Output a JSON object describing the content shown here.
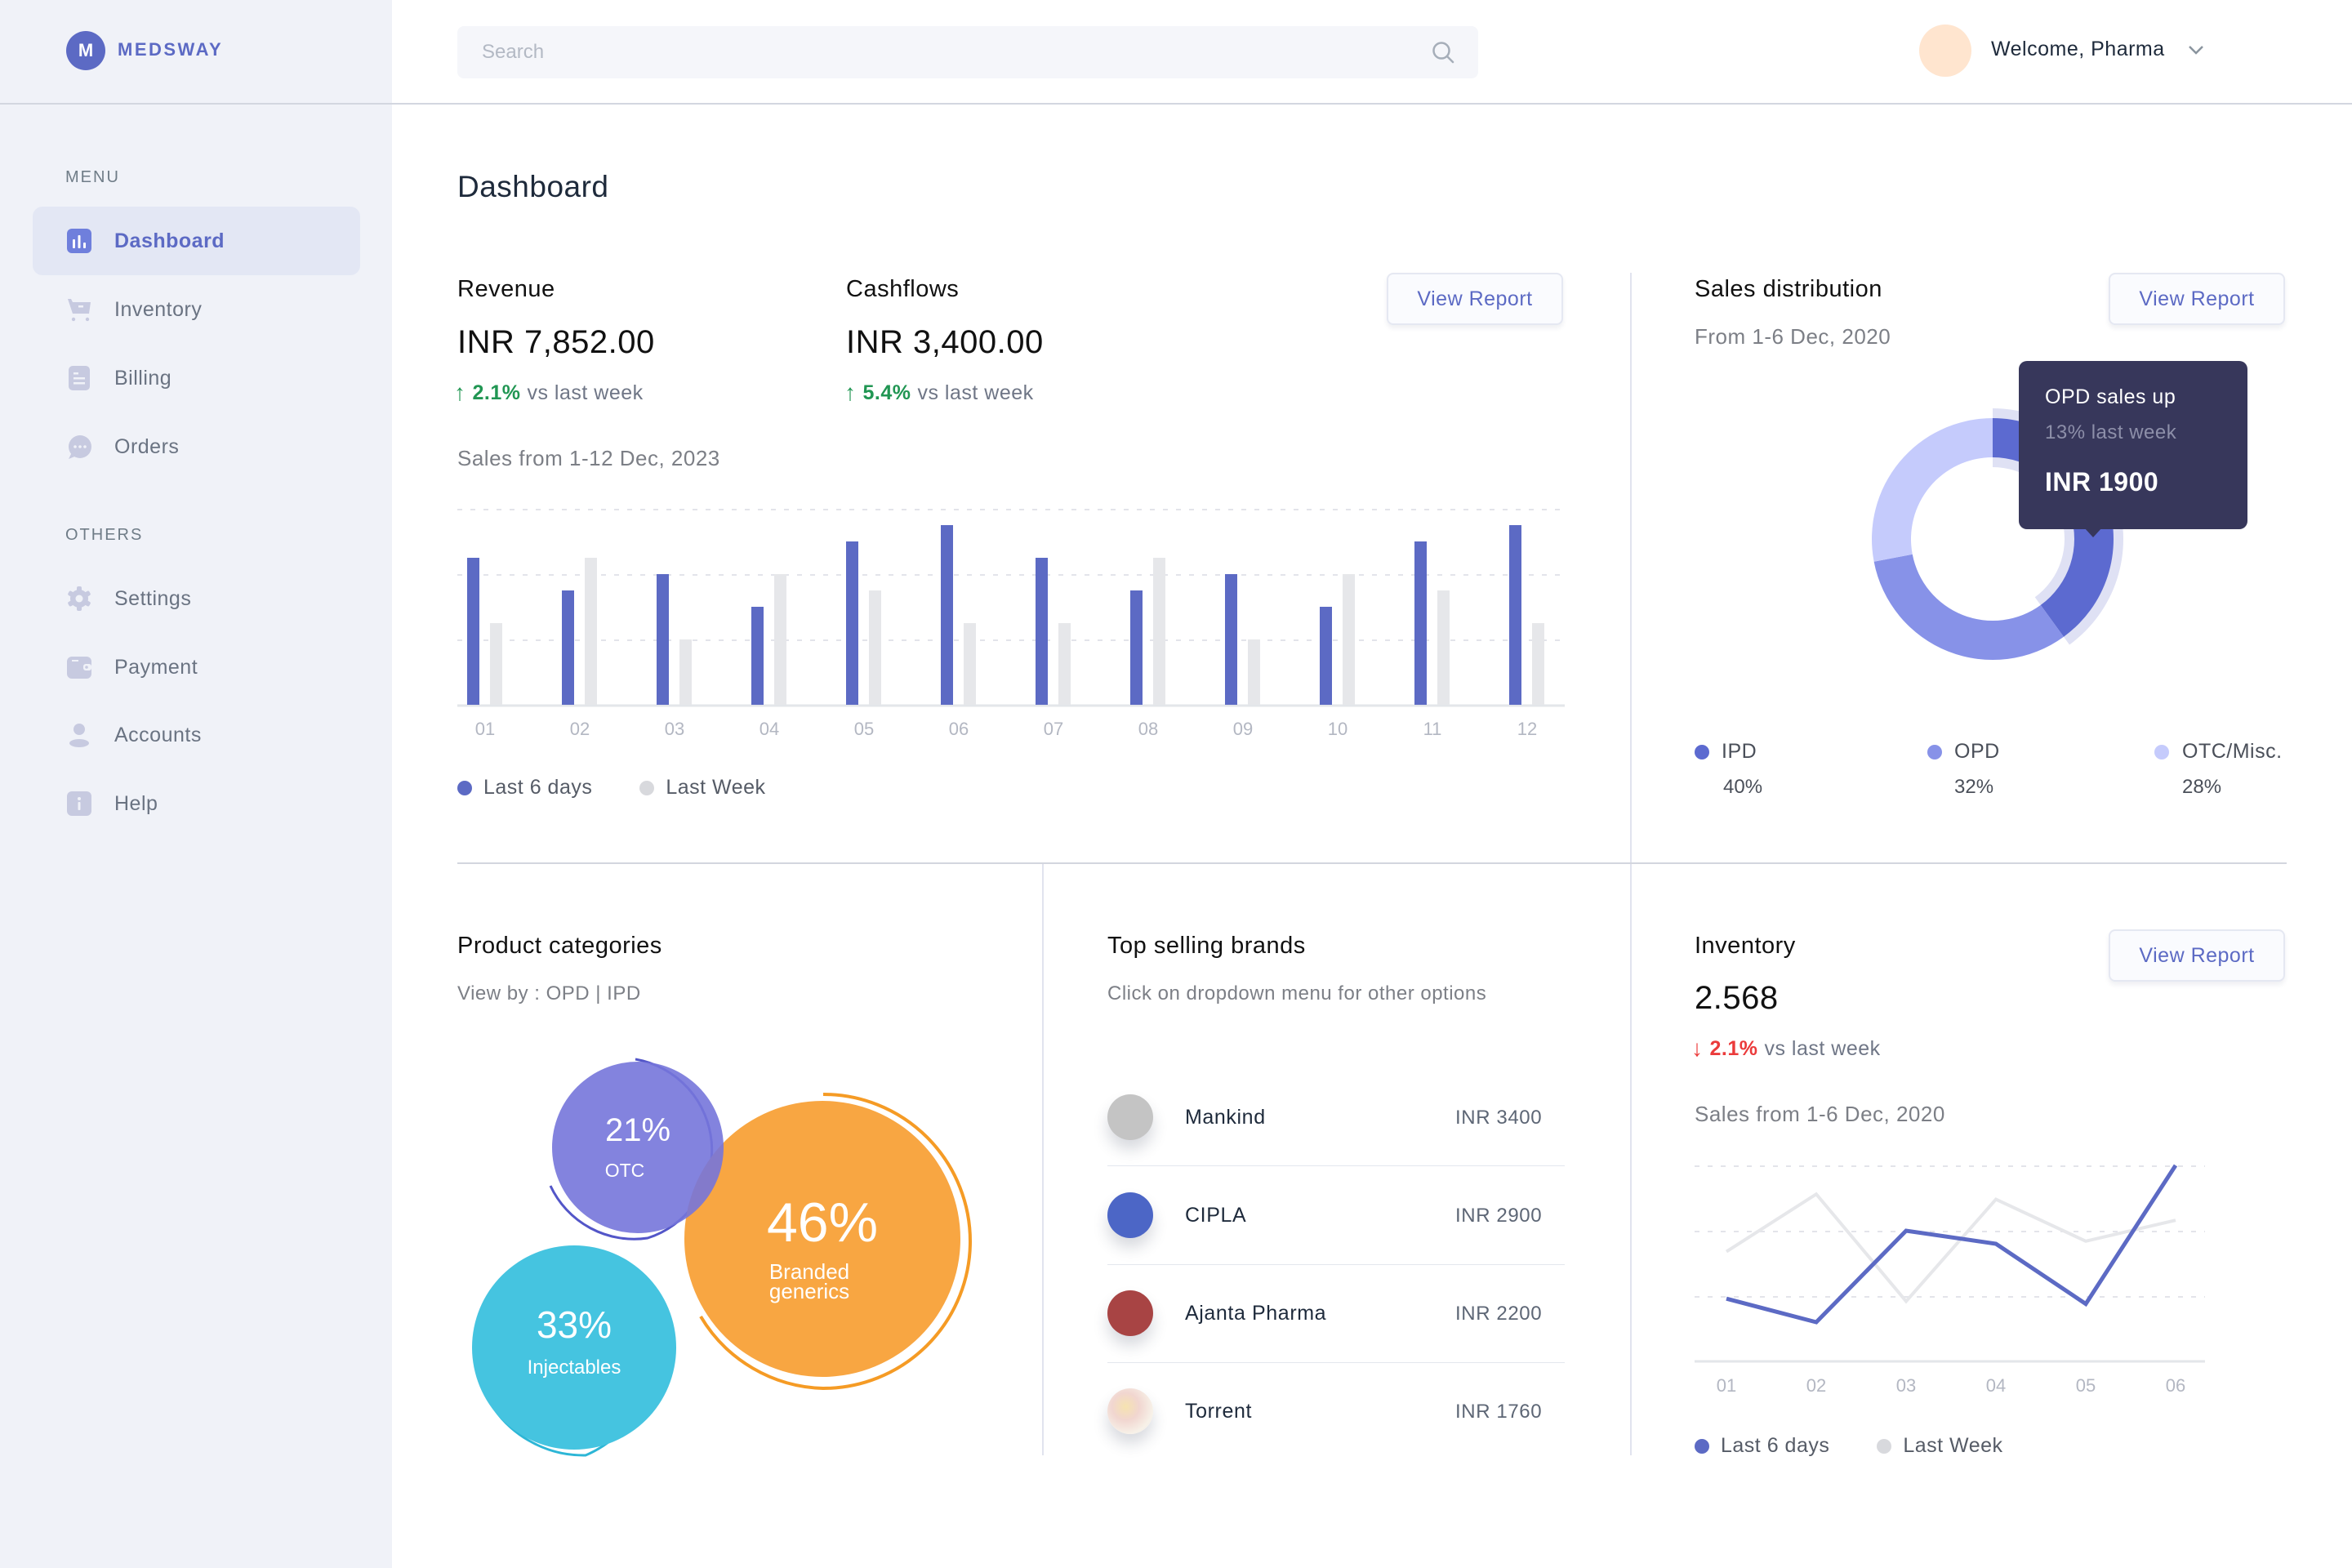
{
  "brand": {
    "logo_letter": "M",
    "name": "MEDSWAY",
    "accent": "#5C6AC4"
  },
  "sidebar": {
    "menu_heading": "MENU",
    "menu_items": [
      {
        "label": "Dashboard",
        "icon": "bar-chart-icon",
        "active": true
      },
      {
        "label": "Inventory",
        "icon": "cart-icon",
        "active": false
      },
      {
        "label": "Billing",
        "icon": "document-icon",
        "active": false
      },
      {
        "label": "Orders",
        "icon": "chat-bubble-icon",
        "active": false
      }
    ],
    "others_heading": "OTHERS",
    "other_items": [
      {
        "label": "Settings",
        "icon": "gear-icon"
      },
      {
        "label": "Payment",
        "icon": "wallet-icon"
      },
      {
        "label": "Accounts",
        "icon": "user-icon"
      },
      {
        "label": "Help",
        "icon": "info-icon"
      }
    ]
  },
  "header": {
    "search": {
      "placeholder": "Search",
      "value": ""
    },
    "welcome": "Welcome, Pharma",
    "notification_dot": true
  },
  "page": {
    "title": "Dashboard"
  },
  "revenue": {
    "title": "Revenue",
    "value": "INR 7,852.00",
    "change_pct": "2.1%",
    "change_dir": "up",
    "change_text": "vs last week"
  },
  "cashflows": {
    "title": "Cashflows",
    "value": "INR 3,400.00",
    "change_pct": "5.4%",
    "change_dir": "up",
    "change_text": "vs last week"
  },
  "sales_chart": {
    "view_report": "View Report",
    "subtitle": "Sales from 1-12 Dec, 2023",
    "legend": [
      {
        "label": "Last 6 days",
        "color": "#5C6AC4"
      },
      {
        "label": "Last Week",
        "color": "#D8D9DD"
      }
    ]
  },
  "sales_distribution": {
    "title": "Sales distribution",
    "subtitle": "From 1-6 Dec, 2020",
    "view_report": "View Report",
    "tooltip": {
      "line1": "OPD sales up",
      "line2": "13% last week",
      "value": "INR 1900"
    },
    "legend": [
      {
        "label": "IPD",
        "value": "40%",
        "color": "#5C6AD0"
      },
      {
        "label": "OPD",
        "value": "32%",
        "color": "#8792E8"
      },
      {
        "label": "OTC/Misc.",
        "value": "28%",
        "color": "#C5CBFC"
      }
    ]
  },
  "product_categories": {
    "title": "Product categories",
    "subtitle": "View by : OPD | IPD",
    "bubbles": [
      {
        "pct": "21%",
        "label": "OTC",
        "color": "#7F7FDC",
        "ring": "#5356C8"
      },
      {
        "pct": "46%",
        "label_line1": "Branded",
        "label_line2": "generics",
        "color": "#F8A642",
        "ring": "#F59B25"
      },
      {
        "pct": "33%",
        "label": "Injectables",
        "color": "#45C4E0",
        "ring": "#2DB6D6"
      }
    ]
  },
  "top_brands": {
    "title": "Top selling brands",
    "subtitle": "Click on dropdown menu for other options",
    "rows": [
      {
        "name": "Mankind",
        "value": "INR 3400",
        "color": "#C4C4C4"
      },
      {
        "name": "CIPLA",
        "value": "INR 2900",
        "color": "#4C66C6"
      },
      {
        "name": "Ajanta Pharma",
        "value": "INR 2200",
        "color": "#A84444"
      },
      {
        "name": "Torrent",
        "value": "INR 1760",
        "color": "#F3ECE4"
      }
    ]
  },
  "inventory": {
    "title": "Inventory",
    "value": "2.568",
    "change_pct": "2.1%",
    "change_dir": "down",
    "change_text": "vs last week",
    "view_report": "View Report",
    "subtitle": "Sales from 1-6 Dec, 2020",
    "legend": [
      {
        "label": "Last 6 days",
        "color": "#5C6AC4"
      },
      {
        "label": "Last Week",
        "color": "#D8D9DD"
      }
    ]
  },
  "chart_data": [
    {
      "type": "bar",
      "title": "Sales from 1-12 Dec, 2023",
      "categories": [
        "01",
        "02",
        "03",
        "04",
        "05",
        "06",
        "07",
        "08",
        "09",
        "10",
        "11",
        "12"
      ],
      "series": [
        {
          "name": "Last 6 days",
          "color": "#5C6AC4",
          "values": [
            90,
            70,
            80,
            60,
            100,
            110,
            90,
            70,
            80,
            60,
            100,
            110
          ]
        },
        {
          "name": "Last Week",
          "color": "#E6E7EA",
          "values": [
            50,
            90,
            40,
            80,
            70,
            50,
            50,
            90,
            40,
            80,
            70,
            50
          ]
        }
      ],
      "ylim": [
        0,
        120
      ],
      "grid": true,
      "legend_position": "bottom-left"
    },
    {
      "type": "pie",
      "title": "Sales distribution",
      "donut": true,
      "categories": [
        "IPD",
        "OPD",
        "OTC/Misc."
      ],
      "values": [
        40,
        32,
        28
      ],
      "colors": [
        "#5C6AD0",
        "#8792E8",
        "#C5CBFC"
      ],
      "annotation": "OPD sales up 13% last week, INR 1900"
    },
    {
      "type": "scatter",
      "title": "Product categories",
      "subtype": "bubble",
      "categories": [
        "OTC",
        "Branded generics",
        "Injectables"
      ],
      "values": [
        21,
        46,
        33
      ]
    },
    {
      "type": "line",
      "title": "Sales from 1-6 Dec, 2020",
      "x": [
        "01",
        "02",
        "03",
        "04",
        "05",
        "06"
      ],
      "series": [
        {
          "name": "Last 6 days",
          "color": "#5C6AC4",
          "values": [
            24,
            15,
            50,
            45,
            22,
            75
          ]
        },
        {
          "name": "Last Week",
          "color": "#E6E7EA",
          "values": [
            42,
            64,
            23,
            62,
            46,
            54
          ]
        }
      ],
      "ylim": [
        0,
        80
      ],
      "grid": true,
      "legend_position": "bottom-left"
    }
  ]
}
